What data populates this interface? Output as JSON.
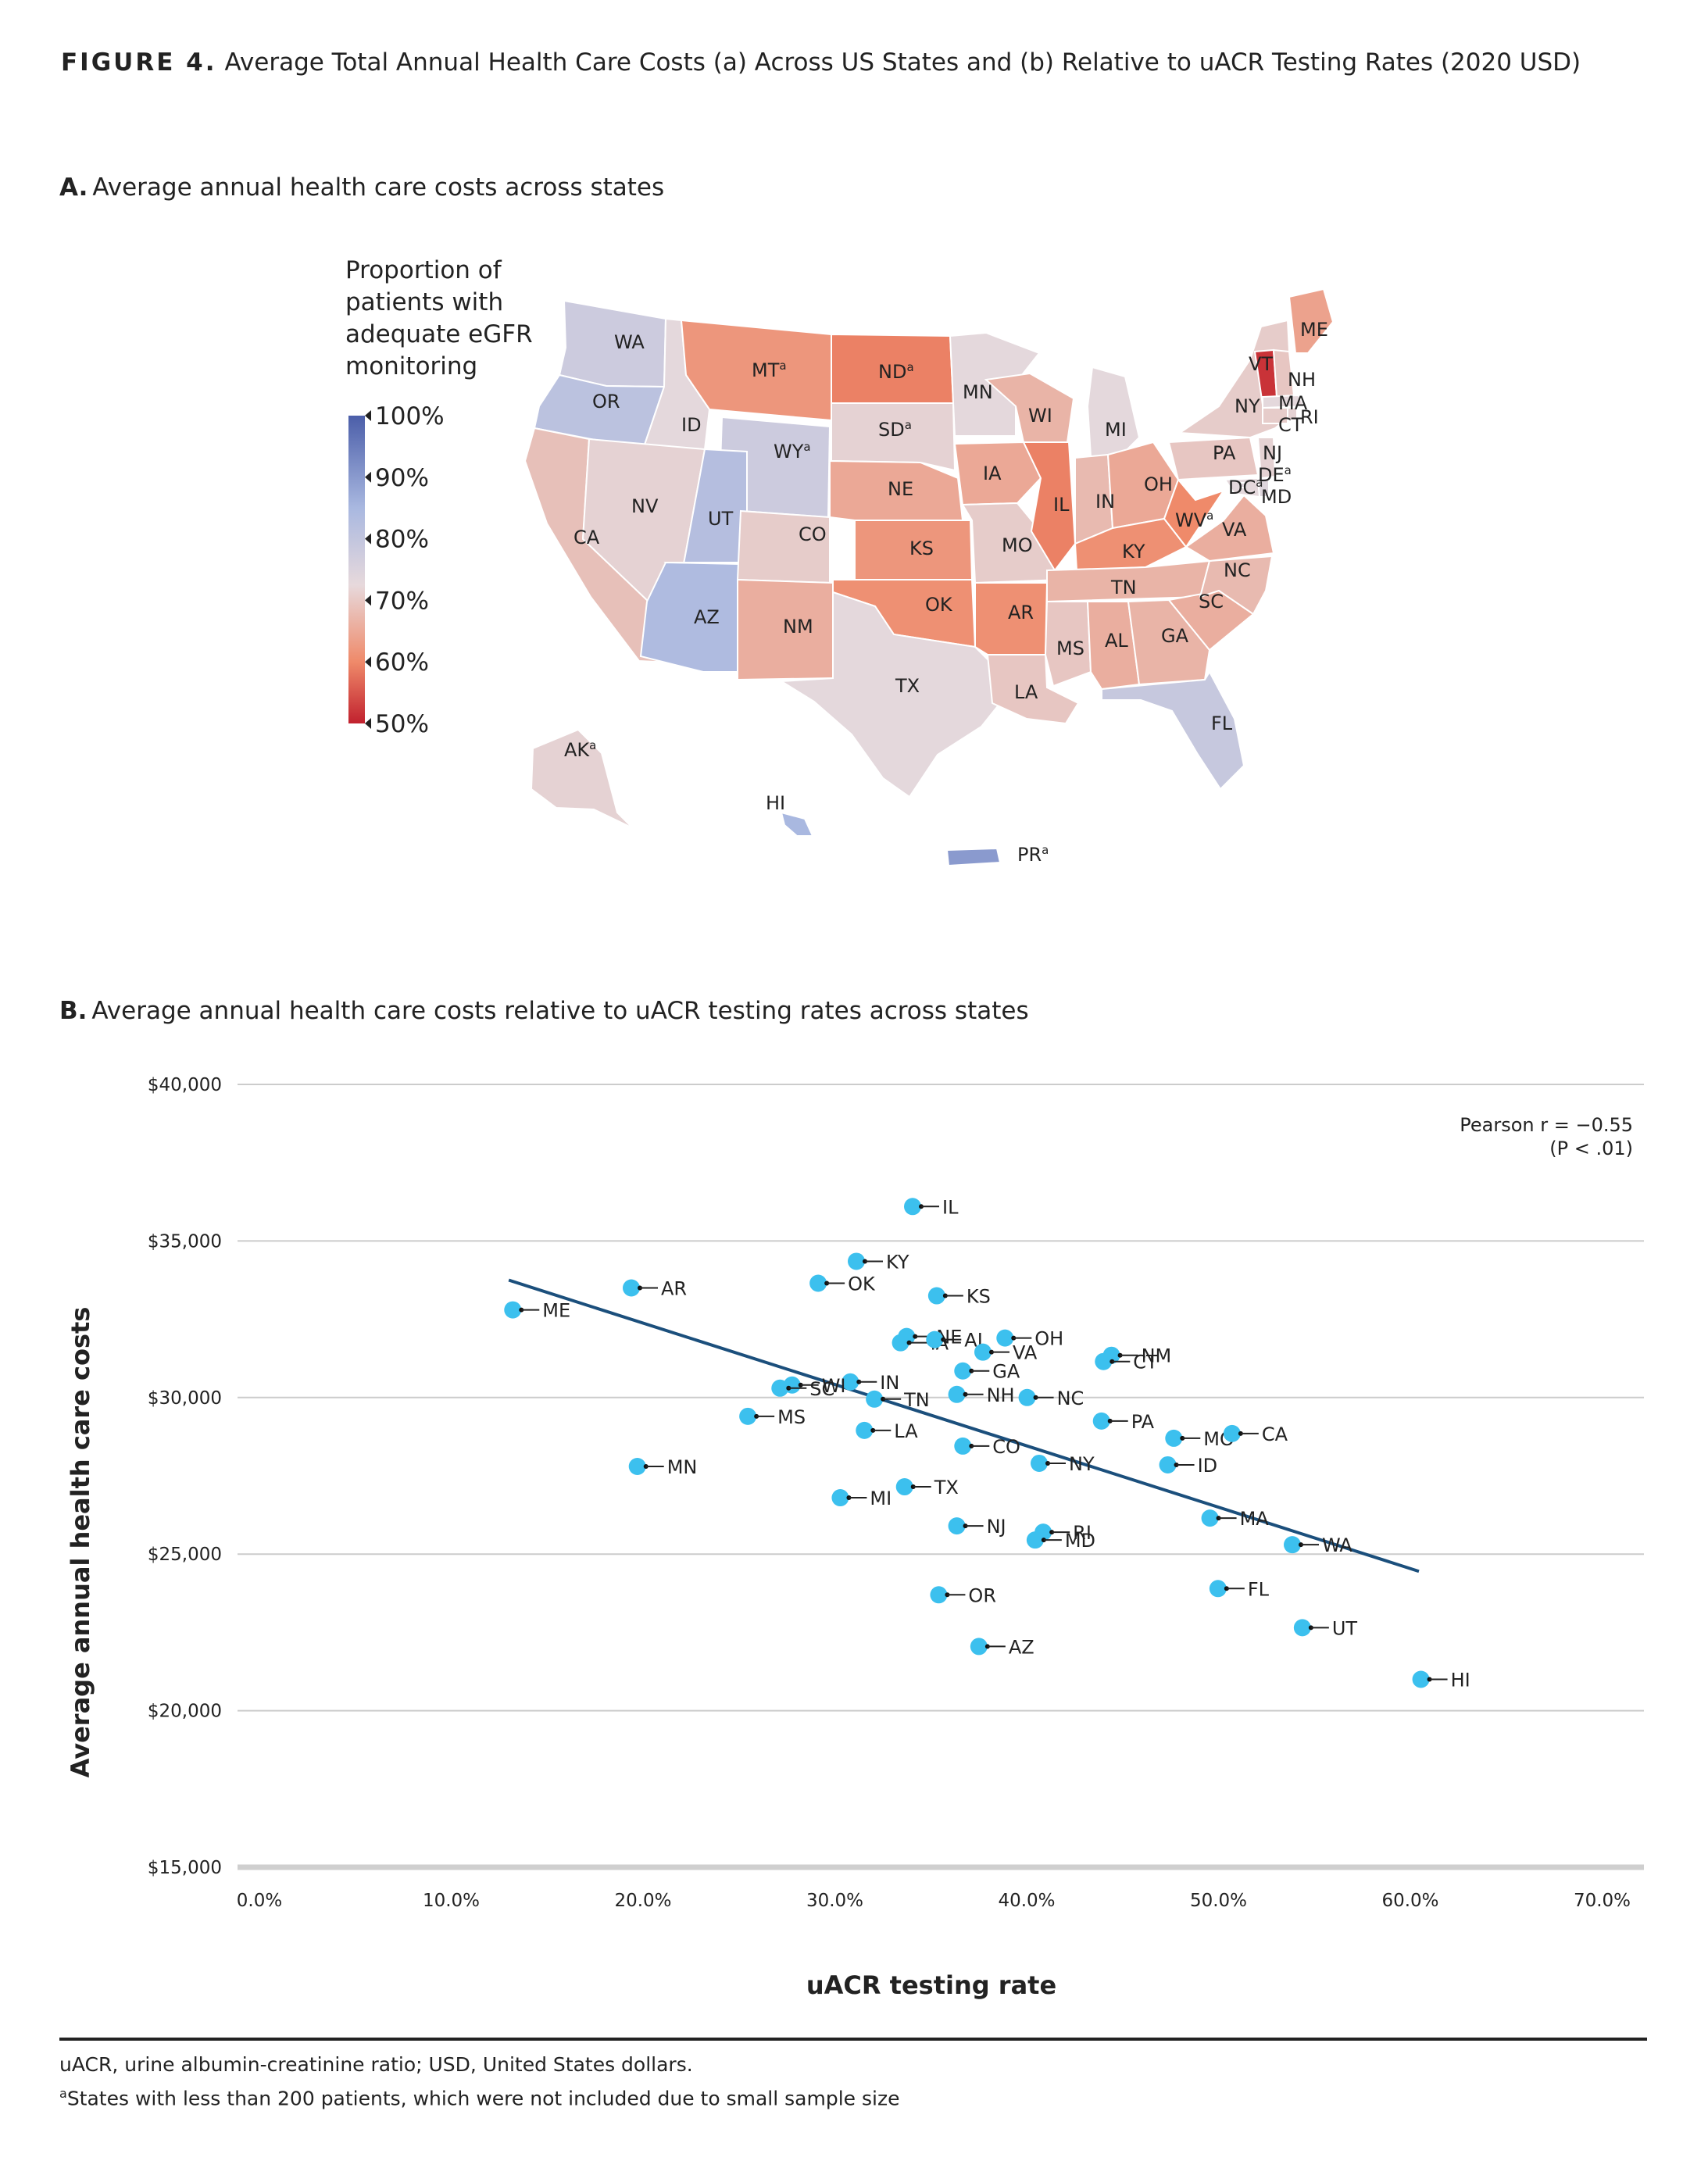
{
  "figure": {
    "label": "FIGURE 4.",
    "title": "Average Total Annual Health Care Costs (a) Across US States and (b) Relative to uACR Testing Rates (2020 USD)"
  },
  "panel_a": {
    "letter": "A.",
    "title": "Average annual health care costs across states",
    "legend_title": "Proportion of patients with adequate eGFR monitoring",
    "legend_ticks": [
      "100%",
      "90%",
      "80%",
      "70%",
      "60%",
      "50%"
    ],
    "colors": {
      "high": "#4b5ea9",
      "mid": "#dfd6dc",
      "low": "#c1212e"
    },
    "states": [
      {
        "abbr": "WA",
        "sup": "",
        "value": 0.79
      },
      {
        "abbr": "OR",
        "sup": "",
        "value": 0.82
      },
      {
        "abbr": "CA",
        "sup": "",
        "value": 0.71
      },
      {
        "abbr": "ID",
        "sup": "",
        "value": 0.75
      },
      {
        "abbr": "NV",
        "sup": "",
        "value": 0.74
      },
      {
        "abbr": "MT",
        "sup": "a",
        "value": 0.64
      },
      {
        "abbr": "WY",
        "sup": "a",
        "value": 0.79
      },
      {
        "abbr": "UT",
        "sup": "",
        "value": 0.83
      },
      {
        "abbr": "AZ",
        "sup": "",
        "value": 0.84
      },
      {
        "abbr": "CO",
        "sup": "",
        "value": 0.73
      },
      {
        "abbr": "NM",
        "sup": "",
        "value": 0.68
      },
      {
        "abbr": "ND",
        "sup": "a",
        "value": 0.61
      },
      {
        "abbr": "SD",
        "sup": "a",
        "value": 0.74
      },
      {
        "abbr": "NE",
        "sup": "",
        "value": 0.67
      },
      {
        "abbr": "KS",
        "sup": "",
        "value": 0.64
      },
      {
        "abbr": "OK",
        "sup": "",
        "value": 0.63
      },
      {
        "abbr": "TX",
        "sup": "",
        "value": 0.75
      },
      {
        "abbr": "MN",
        "sup": "",
        "value": 0.75
      },
      {
        "abbr": "IA",
        "sup": "",
        "value": 0.67
      },
      {
        "abbr": "MO",
        "sup": "",
        "value": 0.73
      },
      {
        "abbr": "AR",
        "sup": "",
        "value": 0.63
      },
      {
        "abbr": "LA",
        "sup": "",
        "value": 0.72
      },
      {
        "abbr": "WI",
        "sup": "",
        "value": 0.69
      },
      {
        "abbr": "IL",
        "sup": "",
        "value": 0.61
      },
      {
        "abbr": "MI",
        "sup": "",
        "value": 0.75
      },
      {
        "abbr": "IN",
        "sup": "",
        "value": 0.7
      },
      {
        "abbr": "OH",
        "sup": "",
        "value": 0.67
      },
      {
        "abbr": "KY",
        "sup": "",
        "value": 0.63
      },
      {
        "abbr": "TN",
        "sup": "",
        "value": 0.69
      },
      {
        "abbr": "MS",
        "sup": "",
        "value": 0.72
      },
      {
        "abbr": "AL",
        "sup": "",
        "value": 0.68
      },
      {
        "abbr": "GA",
        "sup": "",
        "value": 0.69
      },
      {
        "abbr": "FL",
        "sup": "",
        "value": 0.8
      },
      {
        "abbr": "SC",
        "sup": "",
        "value": 0.68
      },
      {
        "abbr": "NC",
        "sup": "",
        "value": 0.7
      },
      {
        "abbr": "VA",
        "sup": "",
        "value": 0.68
      },
      {
        "abbr": "WV",
        "sup": "a",
        "value": 0.62
      },
      {
        "abbr": "PA",
        "sup": "",
        "value": 0.72
      },
      {
        "abbr": "NY",
        "sup": "",
        "value": 0.73
      },
      {
        "abbr": "ME",
        "sup": "",
        "value": 0.66
      },
      {
        "abbr": "VT",
        "sup": "",
        "value": 0.52
      },
      {
        "abbr": "NH",
        "sup": "",
        "value": 0.72
      },
      {
        "abbr": "MA",
        "sup": "",
        "value": 0.75
      },
      {
        "abbr": "CT",
        "sup": "",
        "value": 0.73
      },
      {
        "abbr": "RI",
        "sup": "",
        "value": 0.74
      },
      {
        "abbr": "NJ",
        "sup": "",
        "value": 0.74
      },
      {
        "abbr": "DE",
        "sup": "a",
        "value": 0.76
      },
      {
        "abbr": "MD",
        "sup": "",
        "value": 0.75
      },
      {
        "abbr": "DC",
        "sup": "a",
        "value": 0.76
      },
      {
        "abbr": "AK",
        "sup": "a",
        "value": 0.74
      },
      {
        "abbr": "HI",
        "sup": "",
        "value": 0.85
      },
      {
        "abbr": "PR",
        "sup": "a",
        "value": 0.9
      }
    ]
  },
  "panel_b": {
    "letter": "B.",
    "title": "Average annual health care costs relative to uACR testing rates across states",
    "annotation_line1": "Pearson r = −0.55",
    "annotation_line2": "(P < .01)",
    "colors": {
      "point": "#3cc0ee",
      "trend": "#1b4f7c",
      "grid": "#cccccc",
      "axis": "#cfcfcf"
    }
  },
  "chart_data": {
    "type": "scatter",
    "title": "Average annual health care costs relative to uACR testing rates across states",
    "xlabel": "uACR testing rate",
    "ylabel": "Average annual health care costs",
    "xlim": [
      0,
      70
    ],
    "ylim": [
      15000,
      40000
    ],
    "x_ticks": [
      "0.0%",
      "10.0%",
      "20.0%",
      "30.0%",
      "40.0%",
      "50.0%",
      "60.0%",
      "70.0%"
    ],
    "y_ticks": [
      "$15,000",
      "$20,000",
      "$25,000",
      "$30,000",
      "$35,000",
      "$40,000"
    ],
    "grid": true,
    "trendline": {
      "x": [
        13.5,
        58.8
      ],
      "y": [
        33750,
        24450
      ]
    },
    "points": [
      {
        "state": "IL",
        "x": 33.6,
        "y": 36100
      },
      {
        "state": "KY",
        "x": 30.8,
        "y": 34350
      },
      {
        "state": "AR",
        "x": 19.6,
        "y": 33500
      },
      {
        "state": "OK",
        "x": 28.9,
        "y": 33650
      },
      {
        "state": "KS",
        "x": 34.8,
        "y": 33250
      },
      {
        "state": "ME",
        "x": 13.7,
        "y": 32800
      },
      {
        "state": "NE",
        "x": 33.3,
        "y": 31950
      },
      {
        "state": "IA",
        "x": 33.0,
        "y": 31750
      },
      {
        "state": "AL",
        "x": 34.7,
        "y": 31850
      },
      {
        "state": "VA",
        "x": 37.1,
        "y": 31450
      },
      {
        "state": "OH",
        "x": 38.2,
        "y": 31900
      },
      {
        "state": "NM",
        "x": 43.5,
        "y": 31350
      },
      {
        "state": "CT",
        "x": 43.1,
        "y": 31150
      },
      {
        "state": "GA",
        "x": 36.1,
        "y": 30850
      },
      {
        "state": "IN",
        "x": 30.5,
        "y": 30500
      },
      {
        "state": "WI",
        "x": 27.6,
        "y": 30400
      },
      {
        "state": "SC",
        "x": 27.0,
        "y": 30300
      },
      {
        "state": "TN",
        "x": 31.7,
        "y": 29950
      },
      {
        "state": "NH",
        "x": 35.8,
        "y": 30100
      },
      {
        "state": "NC",
        "x": 39.3,
        "y": 30000
      },
      {
        "state": "MS",
        "x": 25.4,
        "y": 29400
      },
      {
        "state": "PA",
        "x": 43.0,
        "y": 29250
      },
      {
        "state": "MO",
        "x": 46.6,
        "y": 28700
      },
      {
        "state": "CA",
        "x": 49.5,
        "y": 28850
      },
      {
        "state": "LA",
        "x": 31.2,
        "y": 28950
      },
      {
        "state": "CO",
        "x": 36.1,
        "y": 28450
      },
      {
        "state": "MN",
        "x": 19.9,
        "y": 27800
      },
      {
        "state": "NY",
        "x": 39.9,
        "y": 27900
      },
      {
        "state": "ID",
        "x": 46.3,
        "y": 27850
      },
      {
        "state": "TX",
        "x": 33.2,
        "y": 27150
      },
      {
        "state": "MI",
        "x": 30.0,
        "y": 26800
      },
      {
        "state": "MA",
        "x": 48.4,
        "y": 26150
      },
      {
        "state": "NJ",
        "x": 35.8,
        "y": 25900
      },
      {
        "state": "RI",
        "x": 40.1,
        "y": 25700
      },
      {
        "state": "MD",
        "x": 39.7,
        "y": 25450
      },
      {
        "state": "WA",
        "x": 52.5,
        "y": 25300
      },
      {
        "state": "FL",
        "x": 48.8,
        "y": 23900
      },
      {
        "state": "OR",
        "x": 34.9,
        "y": 23700
      },
      {
        "state": "UT",
        "x": 53.0,
        "y": 22650
      },
      {
        "state": "AZ",
        "x": 36.9,
        "y": 22050
      },
      {
        "state": "HI",
        "x": 58.9,
        "y": 21000
      }
    ]
  },
  "footnotes": {
    "abbrev": "uACR, urine albumin-creatinine ratio; USD, United States dollars.",
    "sup": "a",
    "states_note": "States with less than 200 patients, which were not included due to small sample size"
  }
}
